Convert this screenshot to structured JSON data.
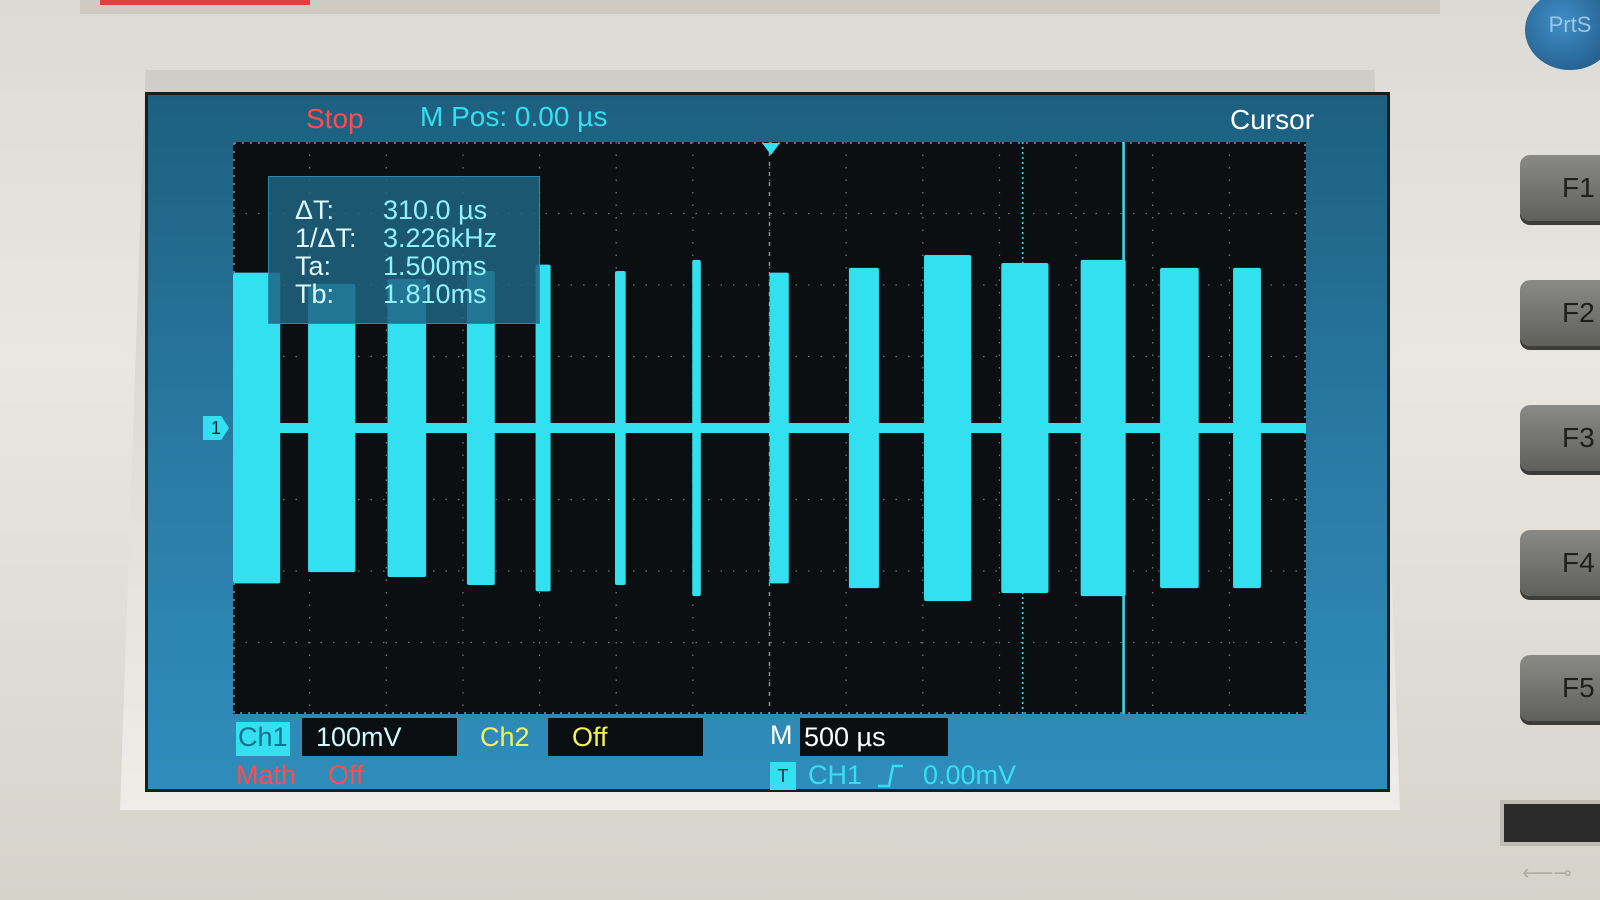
{
  "header": {
    "run_state": "Stop",
    "main_position": "M Pos: 0.00 µs",
    "menu_mode": "Cursor"
  },
  "cursor_readout": {
    "delta_t_label": "ΔT:",
    "delta_t_value": "310.0 µs",
    "inv_delta_t_label": "1/ΔT:",
    "inv_delta_t_value": "3.226kHz",
    "ta_label": "Ta:",
    "ta_value": "1.500ms",
    "tb_label": "Tb:",
    "tb_value": "1.810ms"
  },
  "footer": {
    "ch1_tag": "Ch1",
    "ch1_scale": "100mV",
    "ch2_tag": "Ch2",
    "ch2_state": "Off",
    "timebase_label": "M",
    "timebase_value": "500 µs",
    "math_label": "Math",
    "math_state": "Off",
    "trigger_icon": "T",
    "trigger_source": "CH1",
    "trigger_edge_icon": "rising-edge-icon",
    "trigger_level": "0.00mV"
  },
  "markers": {
    "ch1_ground": "1"
  },
  "softkeys": [
    "F1",
    "F2",
    "F3",
    "F4",
    "F5"
  ],
  "prtsc_label": "PrtS",
  "colors": {
    "trace": "#33e0f0",
    "grid": "#8a8f95",
    "stop": "#ff4d4d",
    "ch2": "#f3f35a"
  },
  "waveform": {
    "bursts": [
      {
        "start_ms": 0.0,
        "end_ms": 0.22,
        "amp": 0.97
      },
      {
        "start_ms": 0.35,
        "end_ms": 0.57,
        "amp": 0.9
      },
      {
        "start_ms": 0.72,
        "end_ms": 0.9,
        "amp": 0.93
      },
      {
        "start_ms": 1.09,
        "end_ms": 1.22,
        "amp": 0.98
      },
      {
        "start_ms": 1.41,
        "end_ms": 1.48,
        "amp": 1.02
      },
      {
        "start_ms": 1.78,
        "end_ms": 1.83,
        "amp": 0.98
      },
      {
        "start_ms": 2.14,
        "end_ms": 2.18,
        "amp": 1.05
      },
      {
        "start_ms": 2.5,
        "end_ms": 2.59,
        "amp": 0.97
      },
      {
        "start_ms": 2.87,
        "end_ms": 3.01,
        "amp": 1.0
      },
      {
        "start_ms": 3.22,
        "end_ms": 3.44,
        "amp": 1.08
      },
      {
        "start_ms": 3.58,
        "end_ms": 3.8,
        "amp": 1.03
      },
      {
        "start_ms": 3.95,
        "end_ms": 4.16,
        "amp": 1.05
      },
      {
        "start_ms": 4.32,
        "end_ms": 4.5,
        "amp": 1.0
      },
      {
        "start_ms": 4.66,
        "end_ms": 4.79,
        "amp": 1.0
      }
    ],
    "time_span_ms": 5.0,
    "divisions_x": 14,
    "divisions_y": 8,
    "cursor_a_ms": 1.5,
    "cursor_b_ms": 1.81
  }
}
